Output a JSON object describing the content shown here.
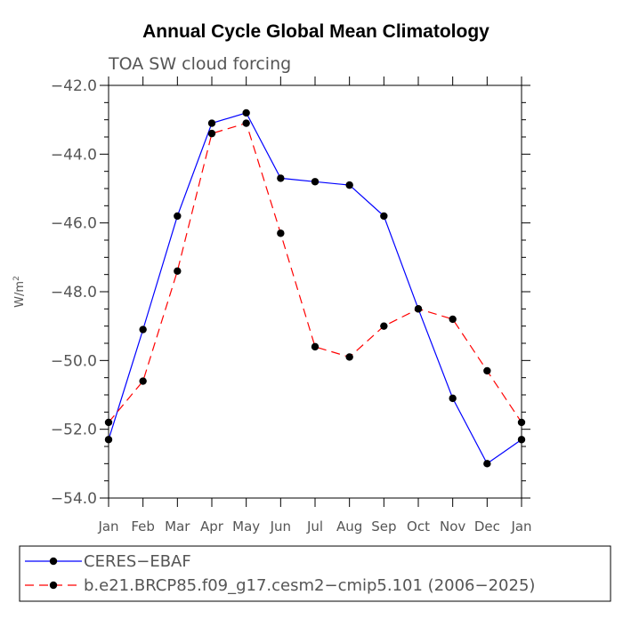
{
  "chart_data": {
    "type": "line",
    "title": "Annual Cycle Global Mean Climatology",
    "subtitle": "TOA SW cloud forcing",
    "ylabel": "W/m",
    "ylabel_sup": "2",
    "xlabel": "",
    "categories": [
      "Jan",
      "Feb",
      "Mar",
      "Apr",
      "May",
      "Jun",
      "Jul",
      "Aug",
      "Sep",
      "Oct",
      "Nov",
      "Dec",
      "Jan"
    ],
    "ylim": [
      -54.0,
      -42.0
    ],
    "yticks": [
      -42.0,
      -44.0,
      -46.0,
      -48.0,
      -50.0,
      -52.0,
      -54.0
    ],
    "ytick_labels": [
      "−42.0",
      "−44.0",
      "−46.0",
      "−48.0",
      "−50.0",
      "−52.0",
      "−54.0"
    ],
    "grid": false,
    "legend_position": "bottom",
    "series": [
      {
        "name": "CERES−EBAF",
        "color": "#0000ff",
        "dash": "solid",
        "marker": "circle",
        "values": [
          -52.3,
          -49.1,
          -45.8,
          -43.1,
          -42.8,
          -44.7,
          -44.8,
          -44.9,
          -45.8,
          -48.5,
          -51.1,
          -53.0,
          -52.3
        ]
      },
      {
        "name": "b.e21.BRCP85.f09_g17.cesm2−cmip5.101 (2006−2025)",
        "color": "#ff0000",
        "dash": "dashed",
        "marker": "circle",
        "values": [
          -51.8,
          -50.6,
          -47.4,
          -43.4,
          -43.1,
          -46.3,
          -49.6,
          -49.9,
          -49.0,
          -48.5,
          -48.8,
          -50.3,
          -51.8
        ]
      }
    ]
  }
}
